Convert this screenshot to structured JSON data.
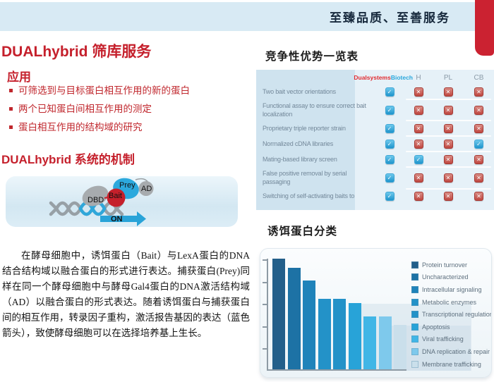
{
  "header": {
    "slogan": "至臻品质、至善服务"
  },
  "page_title": {
    "latin": "DUALhybrid",
    "cjk": "筛库服务"
  },
  "applications": {
    "heading": "应用",
    "items": [
      "可筛选到与目标蛋白相互作用的新的蛋白",
      "两个已知蛋白间相互作用的测定",
      "蛋白相互作用的结构域的研究"
    ]
  },
  "mechanism": {
    "heading": "DUALhybrid 系统的机制",
    "diagram_labels": {
      "dbd": "DBD",
      "bait": "Bait",
      "prey": "Prey",
      "ad": "AD",
      "on": "ON"
    },
    "paragraph": "在酵母细胞中，诱饵蛋白（Bait）与LexA蛋白的DNA结合结构域以融合蛋白的形式进行表达。捕获蛋白(Prey)同样在同一个酵母细胞中与酵母Gal4蛋白的DNA激活结构域（AD）以融合蛋白的形式表达。随着诱饵蛋白与捕获蛋白间的相互作用，转录因子重构，激活报告基因的表达（蓝色箭头），致使酵母细胞可以在选择培养基上生长。"
  },
  "comparison": {
    "heading": "竞争性优势一览表",
    "brand": {
      "part1": "Dualsystems",
      "part2": "Biotech"
    },
    "competitor_columns": [
      "H",
      "PL",
      "CB"
    ],
    "rows": [
      {
        "label": "Two bait vector orientations",
        "marks": [
          "check",
          "cross",
          "cross",
          "cross"
        ]
      },
      {
        "label": "Functional assay to ensure correct bait localization",
        "marks": [
          "check",
          "cross",
          "cross",
          "cross"
        ]
      },
      {
        "label": "Proprietary triple reporter strain",
        "marks": [
          "check",
          "cross",
          "cross",
          "cross"
        ]
      },
      {
        "label": "Normalized cDNA libraries",
        "marks": [
          "check",
          "cross",
          "cross",
          "check"
        ]
      },
      {
        "label": "Mating-based library screen",
        "marks": [
          "check",
          "check",
          "cross",
          "cross"
        ]
      },
      {
        "label": "False positive removal by serial passaging",
        "marks": [
          "check",
          "cross",
          "cross",
          "cross"
        ]
      },
      {
        "label": "Switching of self-activating baits to",
        "marks": [
          "check",
          "cross",
          "cross",
          "cross"
        ]
      }
    ]
  },
  "chart_section": {
    "heading": "诱饵蛋白分类"
  },
  "chart_data": {
    "type": "bar",
    "title": "诱饵蛋白分类",
    "categories": [
      "Protein turnover",
      "Uncharacterized",
      "Intracellular signaling",
      "Metabolic enzymes",
      "Transcriptional regulation",
      "Apoptosis",
      "Viral trafficking",
      "DNA replication & repair",
      "Membrane trafficking"
    ],
    "values": [
      100,
      92,
      80,
      64,
      64,
      60,
      48,
      48,
      40
    ],
    "value_note": "relative bar heights in % of tallest bar; no numeric axis labels shown in figure",
    "colors": [
      "#235f8a",
      "#1d72a5",
      "#1f83ba",
      "#2392c8",
      "#2392c8",
      "#28a3d8",
      "#41b6e6",
      "#7ec9ec",
      "#cadfeb"
    ],
    "xlabel": "",
    "ylabel": "",
    "legend_position": "right",
    "grid": false,
    "y_tick_count": 5
  },
  "colors": {
    "accent_red": "#c5202c",
    "header_bar_blue": "#d8eaf4",
    "corner_tab_red": "#cb2231",
    "brand_red": "#e12b30",
    "brand_blue": "#2aa7dc",
    "check_blue": "#1e94cb",
    "cross_red": "#bf4740",
    "table_label_bg": "#cfe3ef",
    "table_marks_bg": "#e6f1f8",
    "diagram_blue": "#29a3d8"
  }
}
